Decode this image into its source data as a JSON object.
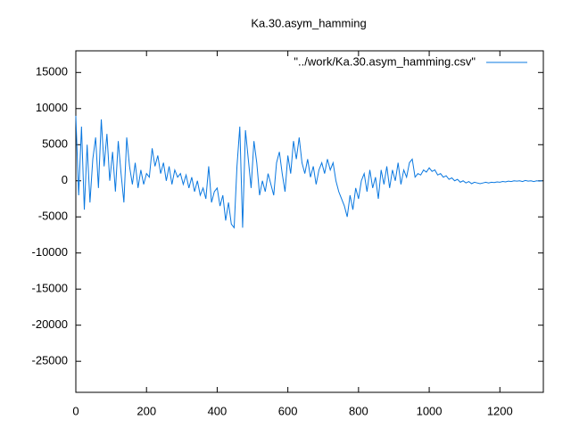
{
  "chart_data": {
    "type": "line",
    "title": "Ka.30.asym_hamming",
    "series": [
      {
        "name": "\"../work/Ka.30.asym_hamming.csv\"",
        "color": "#0a78e0",
        "values": [
          9000,
          -2000,
          7500,
          -4000,
          5000,
          -3000,
          3000,
          6000,
          -1000,
          8500,
          2000,
          6500,
          0,
          4000,
          -1500,
          5500,
          1000,
          -3000,
          6000,
          2000,
          -500,
          2500,
          -1000,
          1500,
          -500,
          1000,
          500,
          4500,
          2000,
          3500,
          1000,
          2500,
          0,
          2000,
          -500,
          1500,
          500,
          1000,
          -500,
          800,
          -1000,
          500,
          -1500,
          0,
          -2000,
          -1000,
          -2500,
          2000,
          -3000,
          -1500,
          -1000,
          -3500,
          -2000,
          -5500,
          -3000,
          -6000,
          -6500,
          2000,
          7500,
          -6500,
          7000,
          3000,
          -1000,
          5500,
          2500,
          -2000,
          0,
          -1500,
          1000,
          -500,
          -2000,
          2500,
          4000,
          1000,
          -1500,
          3500,
          1000,
          5500,
          3000,
          6000,
          2500,
          1000,
          3000,
          500,
          2000,
          -500,
          1500,
          2500,
          1000,
          3000,
          1500,
          2500,
          0,
          -1500,
          -2500,
          -3500,
          -5000,
          -2000,
          -4000,
          -1000,
          -2500,
          0,
          1000,
          -1500,
          1500,
          -1000,
          500,
          -2500,
          1500,
          -500,
          2000,
          -1000,
          1500,
          0,
          2500,
          -500,
          1500,
          500,
          2500,
          3000,
          500,
          1000,
          800,
          1500,
          1200,
          1800,
          1300,
          1500,
          800,
          1000,
          500,
          700,
          200,
          400,
          0,
          200,
          -200,
          0,
          -300,
          -100,
          -400,
          -200,
          -300,
          -400,
          -300,
          -200,
          -300,
          -200,
          -250,
          -150,
          -200,
          -100,
          -150,
          -50,
          -100,
          0,
          -50,
          0,
          -100,
          50,
          -50,
          0,
          -100,
          0,
          -50,
          0
        ]
      }
    ],
    "x": [
      0,
      8,
      16,
      24,
      32,
      40,
      48,
      56,
      64,
      72,
      80,
      88,
      96,
      104,
      112,
      120,
      128,
      136,
      144,
      152,
      160,
      168,
      176,
      184,
      192,
      200,
      208,
      216,
      224,
      232,
      240,
      248,
      256,
      264,
      272,
      280,
      288,
      296,
      304,
      312,
      320,
      328,
      336,
      344,
      352,
      360,
      368,
      376,
      384,
      392,
      400,
      408,
      416,
      424,
      432,
      440,
      448,
      456,
      464,
      472,
      480,
      488,
      496,
      504,
      512,
      520,
      528,
      536,
      544,
      552,
      560,
      568,
      576,
      584,
      592,
      600,
      608,
      616,
      624,
      632,
      640,
      648,
      656,
      664,
      672,
      680,
      688,
      696,
      704,
      712,
      720,
      728,
      736,
      744,
      752,
      760,
      768,
      776,
      784,
      792,
      800,
      808,
      816,
      824,
      832,
      840,
      848,
      856,
      864,
      872,
      880,
      888,
      896,
      904,
      912,
      920,
      928,
      936,
      944,
      952,
      960,
      968,
      976,
      984,
      992,
      1000,
      1008,
      1016,
      1024,
      1032,
      1040,
      1048,
      1056,
      1064,
      1072,
      1080,
      1088,
      1096,
      1104,
      1112,
      1120,
      1128,
      1136,
      1144,
      1152,
      1160,
      1168,
      1176,
      1184,
      1192,
      1200,
      1208,
      1216,
      1224,
      1232,
      1240,
      1248,
      1256,
      1264,
      1272,
      1280,
      1288,
      1296,
      1304,
      1312,
      1320
    ],
    "xlim": [
      0,
      1323
    ],
    "xticks": [
      0,
      200,
      400,
      600,
      800,
      1000,
      1200
    ],
    "ylim": [
      -29300,
      18000
    ],
    "yticks": [
      -25000,
      -20000,
      -15000,
      -10000,
      -5000,
      0,
      5000,
      10000,
      15000
    ],
    "legend": "top-right"
  }
}
